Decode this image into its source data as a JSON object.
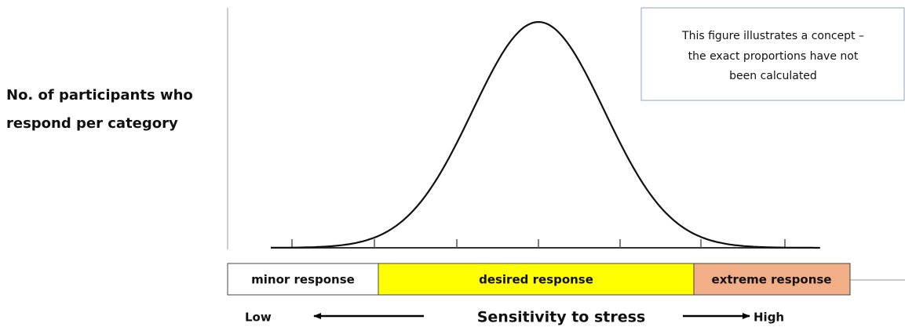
{
  "y_axis_label": [
    "No. of participants who",
    "respond per category"
  ],
  "note": [
    "This figure illustrates a concept –",
    "the exact proportions have not",
    "been calculated"
  ],
  "categories": [
    "minor response",
    "desired response",
    "extreme response"
  ],
  "x_axis_label": "Sensitivity to stress",
  "x_axis_low": "Low",
  "x_axis_high": "High"
}
